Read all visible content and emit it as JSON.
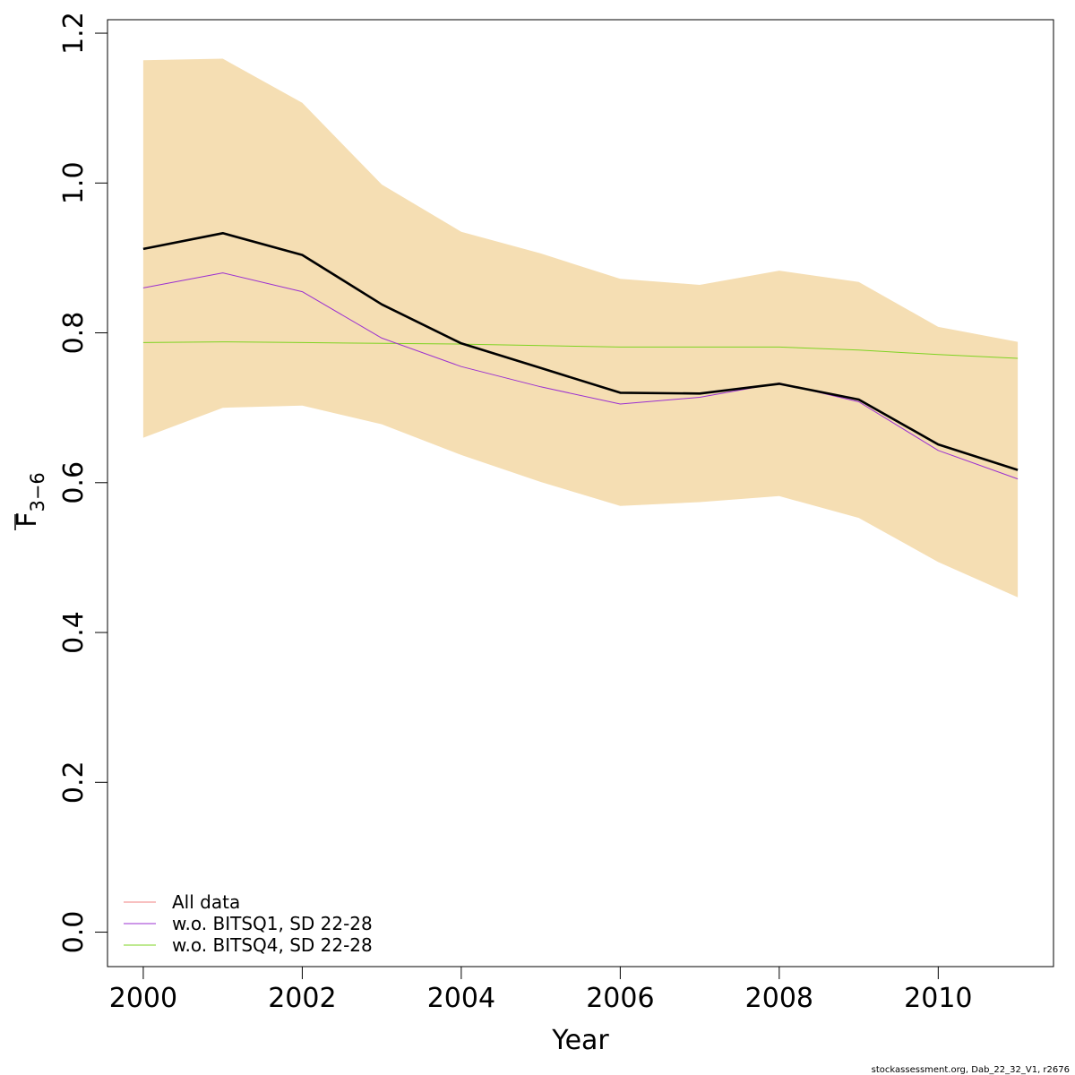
{
  "chart_data": {
    "type": "line",
    "x": [
      2000,
      2001,
      2002,
      2003,
      2004,
      2005,
      2006,
      2007,
      2008,
      2009,
      2010,
      2011
    ],
    "xlabel": "Year",
    "ylabel_main": "F",
    "ylabel_sub": "3−6",
    "xlim": [
      1999.55,
      2011.45
    ],
    "ylim": [
      -0.046,
      1.218
    ],
    "xticks": [
      2000,
      2002,
      2004,
      2006,
      2008,
      2010
    ],
    "yticks": [
      0.0,
      0.2,
      0.4,
      0.6,
      0.8,
      1.0,
      1.2
    ],
    "ytick_labels": [
      "0.0",
      "0.2",
      "0.4",
      "0.6",
      "0.8",
      "1.0",
      "1.2"
    ],
    "confidence_band": {
      "lower": [
        0.66,
        0.7,
        0.703,
        0.678,
        0.637,
        0.601,
        0.569,
        0.574,
        0.582,
        0.553,
        0.494,
        0.447
      ],
      "upper": [
        1.164,
        1.166,
        1.107,
        0.998,
        0.935,
        0.906,
        0.872,
        0.864,
        0.883,
        0.868,
        0.808,
        0.788
      ],
      "color": "#F5DEB3"
    },
    "series": [
      {
        "name": "All data",
        "color": "#000000",
        "values": [
          0.912,
          0.933,
          0.904,
          0.838,
          0.786,
          0.753,
          0.72,
          0.719,
          0.732,
          0.711,
          0.651,
          0.617
        ]
      },
      {
        "name": "w.o. BITSQ1, SD 22-28",
        "color": "#9B30D0",
        "values": [
          0.86,
          0.88,
          0.855,
          0.793,
          0.755,
          0.728,
          0.705,
          0.714,
          0.733,
          0.708,
          0.643,
          0.605
        ]
      },
      {
        "name": "w.o. BITSQ4, SD 22-28",
        "color": "#7ED321",
        "values": [
          0.787,
          0.788,
          0.787,
          0.786,
          0.785,
          0.783,
          0.781,
          0.781,
          0.781,
          0.777,
          0.771,
          0.766
        ]
      }
    ],
    "legend": {
      "position": "bottom-left",
      "entries": [
        {
          "label": "All data",
          "color": "#F08080"
        },
        {
          "label": "w.o. BITSQ1, SD 22-28",
          "color": "#9B30D0"
        },
        {
          "label": "w.o. BITSQ4, SD 22-28",
          "color": "#7ED321"
        }
      ]
    },
    "grid": false
  },
  "footer": "stockassessment.org, Dab_22_32_V1, r2676"
}
